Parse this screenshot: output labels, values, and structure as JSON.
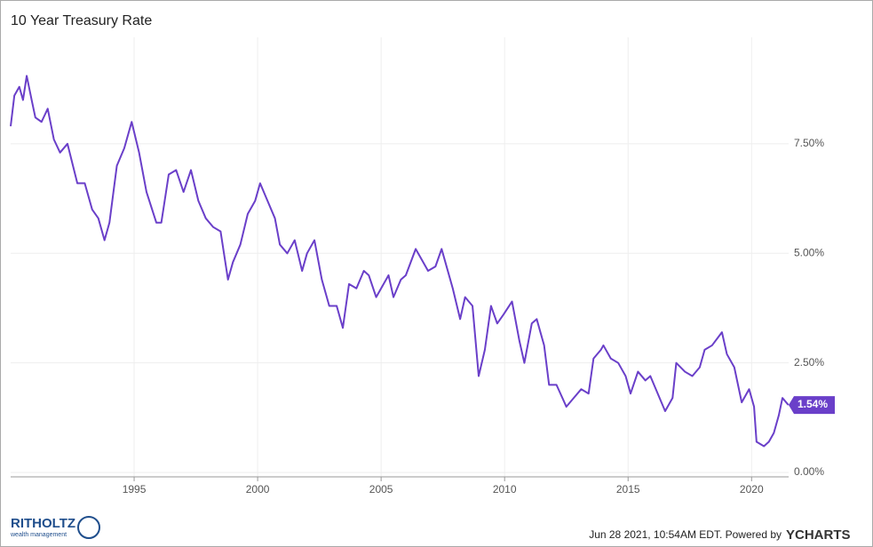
{
  "chart_data": {
    "type": "line",
    "title": "10 Year Treasury Rate",
    "x": [
      1990.0,
      1990.15,
      1990.35,
      1990.5,
      1990.65,
      1990.85,
      1991.0,
      1991.25,
      1991.5,
      1991.75,
      1992.0,
      1992.3,
      1992.7,
      1993.0,
      1993.3,
      1993.55,
      1993.8,
      1994.0,
      1994.3,
      1994.6,
      1994.9,
      1995.2,
      1995.5,
      1995.9,
      1996.1,
      1996.4,
      1996.7,
      1997.0,
      1997.3,
      1997.6,
      1997.9,
      1998.2,
      1998.5,
      1998.8,
      1999.0,
      1999.3,
      1999.6,
      1999.9,
      2000.1,
      2000.4,
      2000.7,
      2000.9,
      2001.2,
      2001.5,
      2001.8,
      2002.0,
      2002.3,
      2002.6,
      2002.9,
      2003.2,
      2003.45,
      2003.7,
      2004.0,
      2004.3,
      2004.5,
      2004.8,
      2005.0,
      2005.3,
      2005.5,
      2005.8,
      2006.0,
      2006.4,
      2006.7,
      2006.9,
      2007.2,
      2007.45,
      2007.7,
      2007.9,
      2008.2,
      2008.4,
      2008.7,
      2008.95,
      2009.2,
      2009.45,
      2009.7,
      2009.95,
      2010.3,
      2010.6,
      2010.8,
      2011.1,
      2011.3,
      2011.6,
      2011.8,
      2012.1,
      2012.5,
      2012.8,
      2013.1,
      2013.4,
      2013.6,
      2013.9,
      2014.0,
      2014.3,
      2014.6,
      2014.9,
      2015.1,
      2015.4,
      2015.7,
      2015.9,
      2016.2,
      2016.5,
      2016.8,
      2016.95,
      2017.3,
      2017.6,
      2017.9,
      2018.1,
      2018.4,
      2018.8,
      2019.0,
      2019.3,
      2019.6,
      2019.9,
      2020.1,
      2020.2,
      2020.5,
      2020.7,
      2020.9,
      2021.1,
      2021.25,
      2021.49
    ],
    "series": [
      {
        "name": "10 Year Treasury Rate",
        "color": "#6a3fc9",
        "values": [
          7.9,
          8.6,
          8.8,
          8.5,
          9.05,
          8.5,
          8.1,
          8.0,
          8.3,
          7.6,
          7.3,
          7.5,
          6.6,
          6.6,
          6.0,
          5.8,
          5.3,
          5.7,
          7.0,
          7.4,
          8.0,
          7.3,
          6.4,
          5.7,
          5.7,
          6.8,
          6.9,
          6.4,
          6.9,
          6.2,
          5.8,
          5.6,
          5.5,
          4.4,
          4.8,
          5.2,
          5.9,
          6.2,
          6.6,
          6.2,
          5.8,
          5.2,
          5.0,
          5.3,
          4.6,
          5.0,
          5.3,
          4.4,
          3.8,
          3.8,
          3.3,
          4.3,
          4.2,
          4.6,
          4.5,
          4.0,
          4.2,
          4.5,
          4.0,
          4.4,
          4.5,
          5.1,
          4.8,
          4.6,
          4.7,
          5.1,
          4.6,
          4.2,
          3.5,
          4.0,
          3.8,
          2.2,
          2.8,
          3.8,
          3.4,
          3.6,
          3.9,
          3.0,
          2.5,
          3.4,
          3.5,
          2.9,
          2.0,
          2.0,
          1.5,
          1.7,
          1.9,
          1.8,
          2.6,
          2.8,
          2.9,
          2.6,
          2.5,
          2.2,
          1.8,
          2.3,
          2.1,
          2.2,
          1.8,
          1.4,
          1.7,
          2.5,
          2.3,
          2.2,
          2.4,
          2.8,
          2.9,
          3.2,
          2.7,
          2.4,
          1.6,
          1.9,
          1.5,
          0.7,
          0.6,
          0.7,
          0.9,
          1.3,
          1.7,
          1.54
        ]
      }
    ],
    "end_label": {
      "value": 1.54,
      "label": "1.54%"
    },
    "xlim": [
      1990.0,
      2021.5
    ],
    "xticks": [
      1995,
      2000,
      2005,
      2010,
      2015,
      2020
    ],
    "ylim": [
      -0.1,
      9.93
    ],
    "yticks": [
      {
        "value": 0,
        "label": "0.00%"
      },
      {
        "value": 2.5,
        "label": "2.50%"
      },
      {
        "value": 5,
        "label": "5.00%"
      },
      {
        "value": 7.5,
        "label": "7.50%"
      }
    ],
    "grid": true,
    "footer": {
      "timestamp": "Jun 28 2021, 10:54AM EDT. Powered by",
      "brand": "YCHARTS",
      "logo": "RITHOLTZ",
      "logo_sub": "wealth management"
    }
  }
}
